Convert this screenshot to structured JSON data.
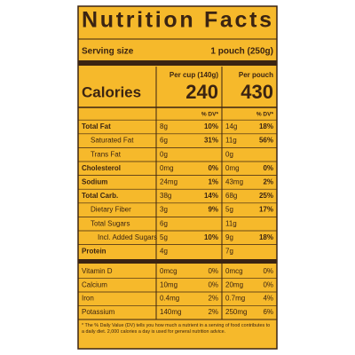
{
  "title": "Nutrition Facts",
  "serving": {
    "label": "Serving size",
    "value": "1 pouch (250g)"
  },
  "calories": {
    "label": "Calories",
    "cup_header": "Per cup (140g)",
    "cup_value": "240",
    "pouch_header": "Per pouch",
    "pouch_value": "430"
  },
  "dv_header": {
    "cup": "% DV*",
    "pouch": "% DV*"
  },
  "nutrients": [
    {
      "name": "Total Fat",
      "cup": "8g",
      "cup_dv": "10%",
      "pouch": "14g",
      "pouch_dv": "18%"
    },
    {
      "name": "Saturated Fat",
      "cup": "6g",
      "cup_dv": "31%",
      "pouch": "11g",
      "pouch_dv": "56%"
    },
    {
      "name": "Trans Fat",
      "cup": "0g",
      "pouch": "0g"
    },
    {
      "name": "Cholesterol",
      "cup": "0mg",
      "cup_dv": "0%",
      "pouch": "0mg",
      "pouch_dv": "0%"
    },
    {
      "name": "Sodium",
      "cup": "24mg",
      "cup_dv": "1%",
      "pouch": "43mg",
      "pouch_dv": "2%"
    },
    {
      "name": "Total Carb.",
      "cup": "38g",
      "cup_dv": "14%",
      "pouch": "68g",
      "pouch_dv": "25%"
    },
    {
      "name": "Dietary Fiber",
      "cup": "3g",
      "cup_dv": "9%",
      "pouch": "5g",
      "pouch_dv": "17%"
    },
    {
      "name": "Total Sugars",
      "cup": "6g",
      "pouch": "11g"
    },
    {
      "name": "Incl. Added Sugars",
      "cup": "5g",
      "cup_dv": "10%",
      "pouch": "9g",
      "pouch_dv": "18%"
    },
    {
      "name": "Protein",
      "cup": "4g",
      "pouch": "7g"
    }
  ],
  "vitamins": [
    {
      "name": "Vitamin D",
      "cup": "0mcg",
      "cup_dv": "0%",
      "pouch": "0mcg",
      "pouch_dv": "0%"
    },
    {
      "name": "Calcium",
      "cup": "10mg",
      "cup_dv": "0%",
      "pouch": "20mg",
      "pouch_dv": "0%"
    },
    {
      "name": "Iron",
      "cup": "0.4mg",
      "cup_dv": "2%",
      "pouch": "0.7mg",
      "pouch_dv": "4%"
    },
    {
      "name": "Potassium",
      "cup": "140mg",
      "cup_dv": "2%",
      "pouch": "250mg",
      "pouch_dv": "6%"
    }
  ],
  "footnote": "* The % Daily Value (DV) tells you how much a nutrient in a serving of food contributes to a daily diet. 2,000 calories a day is used for general nutrition advice."
}
